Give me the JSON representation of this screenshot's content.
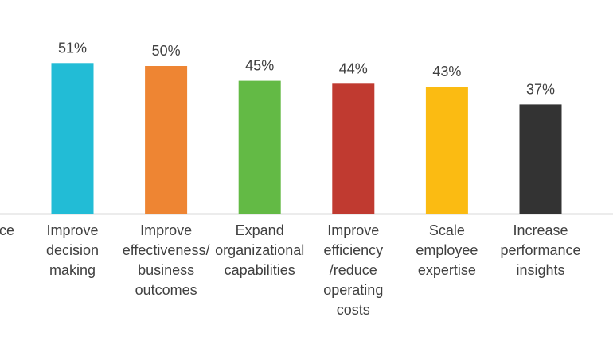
{
  "chart_data": {
    "type": "bar",
    "title": "",
    "xlabel": "",
    "ylabel": "",
    "ylim": [
      0,
      60
    ],
    "grid": false,
    "legend": "none",
    "partial_category_label": "ce",
    "categories": [
      [
        "Improve",
        "decision",
        "making"
      ],
      [
        "Improve",
        "effectiveness/",
        "business",
        "outcomes"
      ],
      [
        "Expand",
        "organizational",
        "capabilities"
      ],
      [
        "Improve",
        "efficiency",
        "/reduce",
        "operating",
        "costs"
      ],
      [
        "Scale",
        "employee",
        "expertise"
      ],
      [
        "Increase",
        "performance",
        "insights"
      ]
    ],
    "values": [
      51,
      50,
      45,
      44,
      43,
      37
    ],
    "data_labels": [
      "51%",
      "50%",
      "45%",
      "44%",
      "43%",
      "37%"
    ],
    "colors": [
      "#22BCD6",
      "#EE8533",
      "#63BA45",
      "#C03A30",
      "#FBBB12",
      "#333333"
    ]
  }
}
